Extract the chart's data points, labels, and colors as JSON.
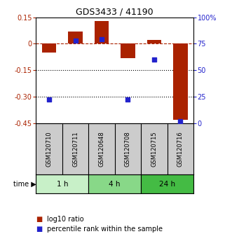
{
  "title": "GDS3433 / 41190",
  "samples": [
    "GSM120710",
    "GSM120711",
    "GSM120648",
    "GSM120708",
    "GSM120715",
    "GSM120716"
  ],
  "log10_ratio": [
    -0.05,
    0.07,
    0.13,
    -0.08,
    0.02,
    -0.43
  ],
  "percentile_rank": [
    22,
    78,
    79,
    22,
    60,
    2
  ],
  "ylim_left": [
    -0.45,
    0.15
  ],
  "ylim_right": [
    0,
    100
  ],
  "yticks_left": [
    0.15,
    0,
    -0.15,
    -0.3,
    -0.45
  ],
  "yticks_right": [
    100,
    75,
    50,
    25,
    0
  ],
  "ytick_labels_left": [
    "0.15",
    "0",
    "-0.15",
    "-0.30",
    "-0.45"
  ],
  "ytick_labels_right": [
    "100%",
    "75",
    "50",
    "25",
    "0"
  ],
  "hlines_dotted": [
    -0.15,
    -0.3
  ],
  "hline_dashed": 0,
  "time_groups": [
    {
      "label": "1 h",
      "start": 0,
      "end": 2,
      "color": "#c8f0c8"
    },
    {
      "label": "4 h",
      "start": 2,
      "end": 4,
      "color": "#88d888"
    },
    {
      "label": "24 h",
      "start": 4,
      "end": 6,
      "color": "#44bb44"
    }
  ],
  "bar_color": "#aa2200",
  "square_color": "#2222cc",
  "bar_width": 0.55,
  "legend_labels": [
    "log10 ratio",
    "percentile rank within the sample"
  ],
  "time_label": "time",
  "background_color": "#ffffff",
  "plot_bg_color": "#ffffff",
  "sample_box_color": "#cccccc",
  "title_fontsize": 9,
  "tick_fontsize": 7,
  "label_fontsize": 7
}
